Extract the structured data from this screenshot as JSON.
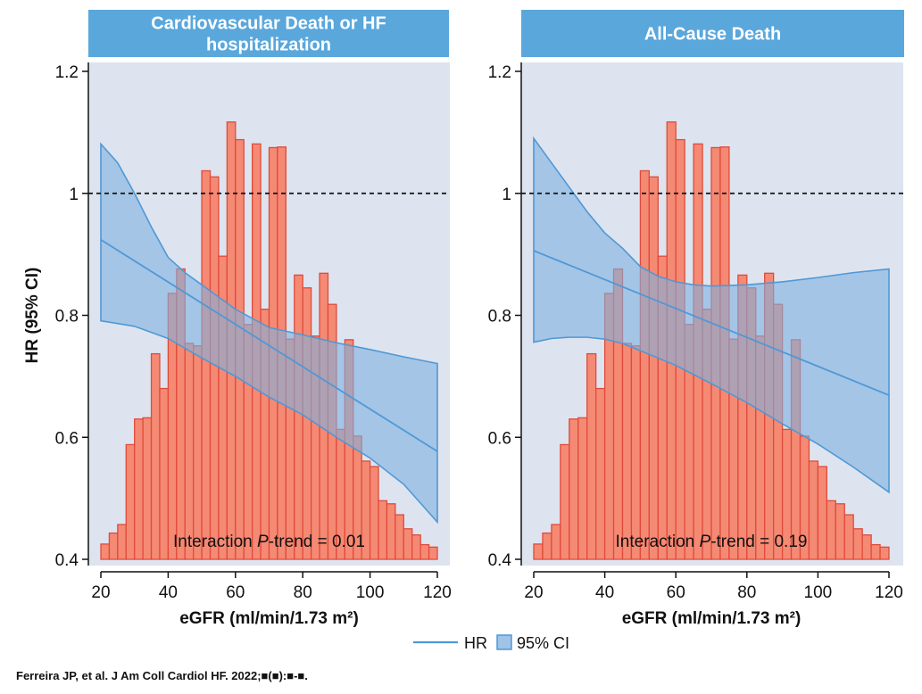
{
  "colors": {
    "title_bar": "#5aa7dc",
    "plot_bg": "#dde4ef",
    "bar_fill": "#f58a74",
    "bar_stroke": "#e04a3a",
    "ci_fill": "#7fb0e0",
    "ci_stroke": "#4f98d6",
    "hr_line": "#4f98d6",
    "reference_line": "#111111"
  },
  "chart_data": [
    {
      "type": "bar",
      "title": "Cardiovascular Death or HF hospitalization",
      "title_lines": [
        "Cardiovascular Death or HF",
        "hospitalization"
      ],
      "xlabel": "eGFR (ml/min/1.73 m²)",
      "ylabel": "HR (95% CI)",
      "xlim": [
        20,
        120
      ],
      "ylim": [
        0.4,
        1.2
      ],
      "xticks": [
        "20",
        "40",
        "60",
        "80",
        "100",
        "120"
      ],
      "yticks": [
        "0.4",
        "0.6",
        "0.8",
        "1",
        "1.2"
      ],
      "reference_line": 1.0,
      "annotation": {
        "prefix": "Interaction ",
        "p": "P",
        "suffix": "-trend = 0.01"
      },
      "histogram": {
        "bin_start": 20,
        "bin_width": 2.5,
        "values": [
          0.425,
          0.443,
          0.457,
          0.588,
          0.63,
          0.632,
          0.737,
          0.68,
          0.836,
          0.876,
          0.754,
          0.75,
          1.037,
          1.027,
          0.897,
          1.117,
          1.088,
          0.785,
          1.081,
          0.81,
          1.075,
          1.076,
          0.761,
          0.866,
          0.845,
          0.766,
          0.869,
          0.818,
          0.613,
          0.76,
          0.602,
          0.561,
          0.552,
          0.496,
          0.491,
          0.473,
          0.45,
          0.44,
          0.424,
          0.42
        ]
      },
      "hr_line": {
        "x": [
          20,
          120
        ],
        "y": [
          0.924,
          0.577
        ]
      },
      "ci_upper": {
        "x": [
          20,
          25,
          30,
          35,
          40,
          45,
          50,
          55,
          60,
          65,
          70,
          80,
          90,
          100,
          110,
          120
        ],
        "y": [
          1.081,
          1.05,
          1.0,
          0.945,
          0.895,
          0.87,
          0.85,
          0.83,
          0.81,
          0.795,
          0.78,
          0.768,
          0.755,
          0.744,
          0.732,
          0.721
        ]
      },
      "ci_lower": {
        "x": [
          20,
          30,
          40,
          50,
          60,
          70,
          80,
          90,
          100,
          110,
          120
        ],
        "y": [
          0.791,
          0.782,
          0.762,
          0.73,
          0.7,
          0.666,
          0.637,
          0.6,
          0.566,
          0.523,
          0.461
        ]
      }
    },
    {
      "type": "bar",
      "title": "All-Cause Death",
      "title_lines": [
        "All-Cause Death"
      ],
      "xlabel": "eGFR (ml/min/1.73 m²)",
      "ylabel": "",
      "xlim": [
        20,
        120
      ],
      "ylim": [
        0.4,
        1.2
      ],
      "xticks": [
        "20",
        "40",
        "60",
        "80",
        "100",
        "120"
      ],
      "yticks": [
        "0.4",
        "0.6",
        "0.8",
        "1",
        "1.2"
      ],
      "reference_line": 1.0,
      "annotation": {
        "prefix": "Interaction ",
        "p": "P",
        "suffix": "-trend = 0.19"
      },
      "histogram": {
        "bin_start": 20,
        "bin_width": 2.5,
        "values": [
          0.425,
          0.443,
          0.457,
          0.588,
          0.63,
          0.632,
          0.737,
          0.68,
          0.836,
          0.876,
          0.754,
          0.75,
          1.037,
          1.027,
          0.897,
          1.117,
          1.088,
          0.785,
          1.081,
          0.81,
          1.075,
          1.076,
          0.761,
          0.866,
          0.845,
          0.766,
          0.869,
          0.818,
          0.613,
          0.76,
          0.602,
          0.561,
          0.552,
          0.496,
          0.491,
          0.473,
          0.45,
          0.44,
          0.424,
          0.42
        ]
      },
      "hr_line": {
        "x": [
          20,
          120
        ],
        "y": [
          0.906,
          0.669
        ]
      },
      "ci_upper": {
        "x": [
          20,
          25,
          30,
          35,
          40,
          45,
          50,
          55,
          60,
          65,
          70,
          80,
          90,
          100,
          110,
          120
        ],
        "y": [
          1.09,
          1.05,
          1.01,
          0.97,
          0.935,
          0.91,
          0.88,
          0.864,
          0.855,
          0.85,
          0.848,
          0.85,
          0.855,
          0.862,
          0.87,
          0.876
        ]
      },
      "ci_lower": {
        "x": [
          20,
          25,
          30,
          35,
          40,
          45,
          50,
          60,
          70,
          80,
          90,
          100,
          110,
          120
        ],
        "y": [
          0.756,
          0.762,
          0.764,
          0.764,
          0.761,
          0.754,
          0.742,
          0.718,
          0.688,
          0.657,
          0.622,
          0.589,
          0.551,
          0.51
        ]
      }
    }
  ],
  "legend": {
    "hr_label": "HR",
    "ci_label": "95% CI"
  },
  "citation": "Ferreira JP, et al. J Am Coll Cardiol HF. 2022;■(■):■-■."
}
